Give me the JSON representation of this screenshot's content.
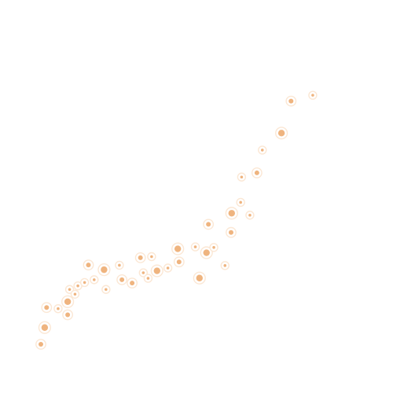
{
  "chart_data": {
    "type": "scatter",
    "title": "",
    "xlabel": "",
    "ylabel": "",
    "grid": false,
    "legend": "none",
    "xlim": [
      0,
      100
    ],
    "ylim": [
      0,
      100
    ],
    "color": "#efb47f",
    "halo_color": "#fbe7d4",
    "series": [
      {
        "name": "points",
        "points": [
          {
            "x": 0.0,
            "y": 0.0,
            "size": 2
          },
          {
            "x": 1.2,
            "y": 6.0,
            "size": 3
          },
          {
            "x": 1.8,
            "y": 13.2,
            "size": 2
          },
          {
            "x": 5.4,
            "y": 12.8,
            "size": 1
          },
          {
            "x": 8.4,
            "y": 10.6,
            "size": 2
          },
          {
            "x": 8.4,
            "y": 15.3,
            "size": 3
          },
          {
            "x": 9.0,
            "y": 19.7,
            "size": 1
          },
          {
            "x": 10.7,
            "y": 18.0,
            "size": 1
          },
          {
            "x": 11.6,
            "y": 21.0,
            "size": 1
          },
          {
            "x": 13.7,
            "y": 22.2,
            "size": 1
          },
          {
            "x": 14.9,
            "y": 28.5,
            "size": 2
          },
          {
            "x": 16.7,
            "y": 23.2,
            "size": 1
          },
          {
            "x": 19.8,
            "y": 26.8,
            "size": 3
          },
          {
            "x": 20.4,
            "y": 19.7,
            "size": 1
          },
          {
            "x": 24.6,
            "y": 28.4,
            "size": 1
          },
          {
            "x": 25.4,
            "y": 23.2,
            "size": 2
          },
          {
            "x": 28.6,
            "y": 22.0,
            "size": 2
          },
          {
            "x": 31.2,
            "y": 31.1,
            "size": 2
          },
          {
            "x": 32.1,
            "y": 25.7,
            "size": 1
          },
          {
            "x": 33.6,
            "y": 23.7,
            "size": 1
          },
          {
            "x": 34.7,
            "y": 31.5,
            "size": 1
          },
          {
            "x": 36.4,
            "y": 26.4,
            "size": 3
          },
          {
            "x": 39.8,
            "y": 27.4,
            "size": 1
          },
          {
            "x": 42.9,
            "y": 34.3,
            "size": 3
          },
          {
            "x": 43.3,
            "y": 29.6,
            "size": 2
          },
          {
            "x": 48.4,
            "y": 35.0,
            "size": 1
          },
          {
            "x": 49.7,
            "y": 23.8,
            "size": 3
          },
          {
            "x": 51.9,
            "y": 32.9,
            "size": 3
          },
          {
            "x": 52.5,
            "y": 43.1,
            "size": 2
          },
          {
            "x": 54.2,
            "y": 34.8,
            "size": 1
          },
          {
            "x": 57.7,
            "y": 28.3,
            "size": 1
          },
          {
            "x": 59.6,
            "y": 40.2,
            "size": 2
          },
          {
            "x": 59.8,
            "y": 47.1,
            "size": 3
          },
          {
            "x": 62.6,
            "y": 51.0,
            "size": 1
          },
          {
            "x": 62.9,
            "y": 60.1,
            "size": 1
          },
          {
            "x": 65.5,
            "y": 46.4,
            "size": 1
          },
          {
            "x": 67.7,
            "y": 61.6,
            "size": 2
          },
          {
            "x": 69.4,
            "y": 69.8,
            "size": 1
          },
          {
            "x": 75.4,
            "y": 75.9,
            "size": 3
          },
          {
            "x": 78.4,
            "y": 87.4,
            "size": 2
          },
          {
            "x": 85.2,
            "y": 89.5,
            "size": 1
          }
        ]
      }
    ]
  }
}
